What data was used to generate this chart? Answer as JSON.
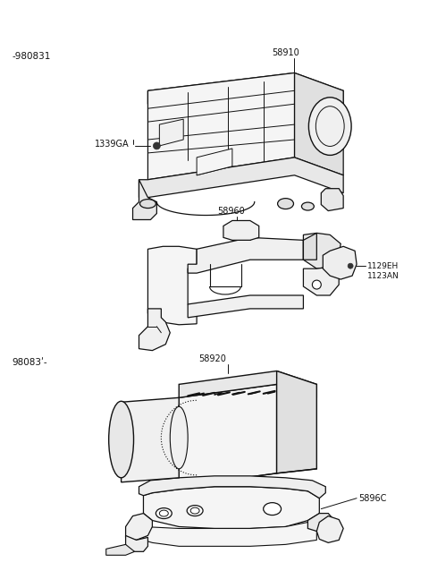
{
  "bg_color": "#ffffff",
  "fig_width": 4.8,
  "fig_height": 6.57,
  "dpi": 100,
  "labels": {
    "top_left_code": "-980831",
    "bottom_left_code": "98083ʹ-",
    "part1_num": "58910",
    "part2_num": "1339GA",
    "part3_num": "58960",
    "part4_num": "1129EH\n1123AN",
    "part5_num": "58920",
    "part6_num": "5896C"
  },
  "text_color": "#111111",
  "line_color": "#111111",
  "font_size_labels": 7,
  "font_size_codes": 7.5
}
